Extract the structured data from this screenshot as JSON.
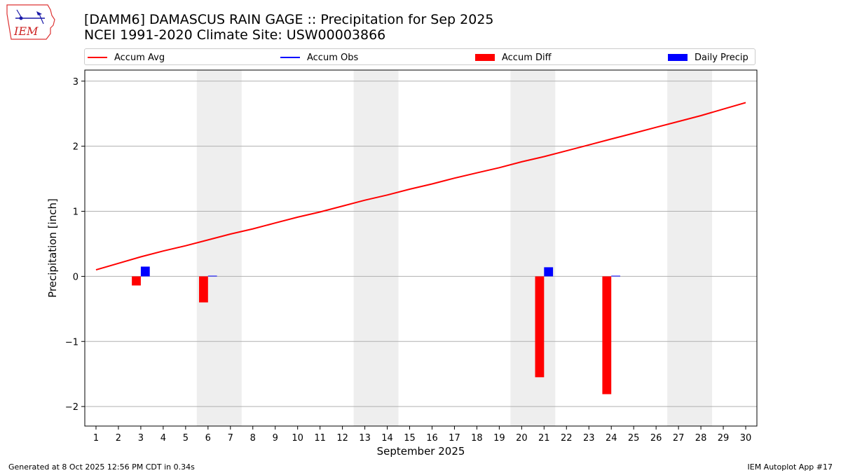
{
  "header": {
    "title_line1": "[DAMM6] DAMASCUS RAIN GAGE :: Precipitation for Sep 2025",
    "title_line2": "NCEI 1991-2020 Climate Site: USW00003866",
    "logo_text": "IEM"
  },
  "legend": [
    {
      "label": "Accum Avg",
      "kind": "line",
      "color": "#ff0000"
    },
    {
      "label": "Accum Obs",
      "kind": "line",
      "color": "#0000ff"
    },
    {
      "label": "Accum Diff",
      "kind": "patch",
      "color": "#ff0000"
    },
    {
      "label": "Daily Precip",
      "kind": "patch",
      "color": "#0000ff"
    }
  ],
  "footer": {
    "left": "Generated at 8 Oct 2025 12:56 PM CDT in 0.34s",
    "right": "IEM Autoplot App #17"
  },
  "colors": {
    "accum_avg": "#ff0000",
    "accum_obs": "#0000ff",
    "accum_diff": "#ff0000",
    "daily_precip": "#0000ff",
    "weekend_shade": "#eeeeee",
    "grid": "#b0b0b0"
  },
  "chart_data": {
    "type": "bar",
    "xlabel": "September 2025",
    "ylabel": "Precipitation [inch]",
    "xlim": [
      0.5,
      30.5
    ],
    "ylim": [
      -2.3,
      3.17
    ],
    "yticks": [
      3,
      2,
      1,
      0,
      -1,
      -2
    ],
    "ytick_labels": [
      "3",
      "2",
      "1",
      "0",
      "−1",
      "−2"
    ],
    "days": [
      1,
      2,
      3,
      4,
      5,
      6,
      7,
      8,
      9,
      10,
      11,
      12,
      13,
      14,
      15,
      16,
      17,
      18,
      19,
      20,
      21,
      22,
      23,
      24,
      25,
      26,
      27,
      28,
      29,
      30
    ],
    "weekend_spans": [
      [
        6,
        7
      ],
      [
        13,
        14
      ],
      [
        20,
        21
      ],
      [
        27,
        28
      ]
    ],
    "grid": "horizontal",
    "legend_placement": "top",
    "series": [
      {
        "name": "Accum Avg",
        "type": "line",
        "values": [
          0.1,
          0.2,
          0.3,
          0.39,
          0.47,
          0.56,
          0.65,
          0.73,
          0.82,
          0.91,
          0.99,
          1.08,
          1.17,
          1.25,
          1.34,
          1.42,
          1.51,
          1.59,
          1.67,
          1.76,
          1.84,
          1.93,
          2.02,
          2.11,
          2.2,
          2.29,
          2.38,
          2.47,
          2.57,
          2.67
        ]
      },
      {
        "name": "Accum Diff",
        "type": "bar",
        "points": [
          {
            "x": 3,
            "y": -0.14
          },
          {
            "x": 6,
            "y": -0.4
          },
          {
            "x": 21,
            "y": -1.55
          },
          {
            "x": 24,
            "y": -1.81
          }
        ]
      },
      {
        "name": "Daily Precip",
        "type": "bar",
        "points": [
          {
            "x": 3,
            "y": 0.15
          },
          {
            "x": 6,
            "y": 0.01
          },
          {
            "x": 21,
            "y": 0.14
          },
          {
            "x": 24,
            "y": 0.01
          }
        ]
      }
    ]
  }
}
